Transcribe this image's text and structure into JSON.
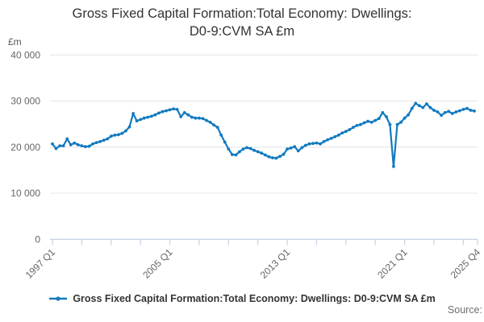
{
  "page": {
    "title_line1": "Gross Fixed Capital Formation:Total Economy: Dwellings:",
    "title_line2": "D0-9:CVM SA £m",
    "source_label": "Source:"
  },
  "legend": {
    "label": "Gross Fixed Capital Formation:Total Economy: Dwellings: D0-9:CVM SA £m"
  },
  "chart_data": {
    "type": "line",
    "title": "Gross Fixed Capital Formation:Total Economy: Dwellings: D0-9:CVM SA £m",
    "xlabel": "",
    "ylabel": "£m",
    "ylim": [
      0,
      40000
    ],
    "grid": "horizontal",
    "legend_position": "bottom",
    "y_ticks": [
      {
        "value": 40000,
        "label": "40 000"
      },
      {
        "value": 30000,
        "label": "30 000"
      },
      {
        "value": 20000,
        "label": "20 000"
      },
      {
        "value": 10000,
        "label": "10 000"
      },
      {
        "value": 0,
        "label": "0"
      }
    ],
    "x_unit": "quarter",
    "x_start_label": "1997 Q1",
    "x_end_label": "2025 Q4",
    "n_quarters": 116,
    "x_tick_every_quarters": 8,
    "x_labeled_ticks": [
      {
        "q": 0,
        "label": "1997 Q1"
      },
      {
        "q": 32,
        "label": "2005 Q1"
      },
      {
        "q": 64,
        "label": "2013 Q1"
      },
      {
        "q": 96,
        "label": "2021 Q1"
      },
      {
        "q": 115,
        "label": "2025 Q4",
        "at_end": true
      }
    ],
    "series": [
      {
        "name": "Gross Fixed Capital Formation:Total Economy: Dwellings: D0-9:CVM SA £m",
        "color": "#127abf",
        "values": [
          20700,
          19700,
          20300,
          20300,
          21800,
          20500,
          20900,
          20500,
          20300,
          20100,
          20200,
          20700,
          21000,
          21200,
          21500,
          21800,
          22400,
          22600,
          22700,
          23000,
          23550,
          24400,
          27300,
          25700,
          26000,
          26300,
          26500,
          26700,
          27000,
          27400,
          27700,
          27900,
          28100,
          28300,
          28200,
          26600,
          27500,
          27000,
          26500,
          26300,
          26300,
          26200,
          25800,
          25400,
          24800,
          24300,
          22600,
          21100,
          19600,
          18400,
          18300,
          19000,
          19600,
          19900,
          19700,
          19300,
          19000,
          18700,
          18300,
          17900,
          17700,
          17600,
          18000,
          18450,
          19600,
          19800,
          20100,
          19200,
          19900,
          20400,
          20700,
          20800,
          20900,
          20700,
          21200,
          21600,
          21900,
          22250,
          22600,
          23100,
          23400,
          23800,
          24300,
          24700,
          24900,
          25300,
          25600,
          25400,
          25800,
          26200,
          27500,
          26600,
          24900,
          15800,
          24900,
          25400,
          26300,
          27000,
          28400,
          29500,
          29000,
          28600,
          29400,
          28600,
          28000,
          27650,
          26900,
          27500,
          27750,
          27300,
          27650,
          27900,
          28200,
          28400,
          28000,
          27850
        ]
      }
    ],
    "colors": {
      "line": "#127abf",
      "gridline": "#e4e4e4",
      "axis": "#c9d3e8",
      "tick_label": "#666666",
      "title": "#333333",
      "source": "#6e6e6e"
    }
  }
}
